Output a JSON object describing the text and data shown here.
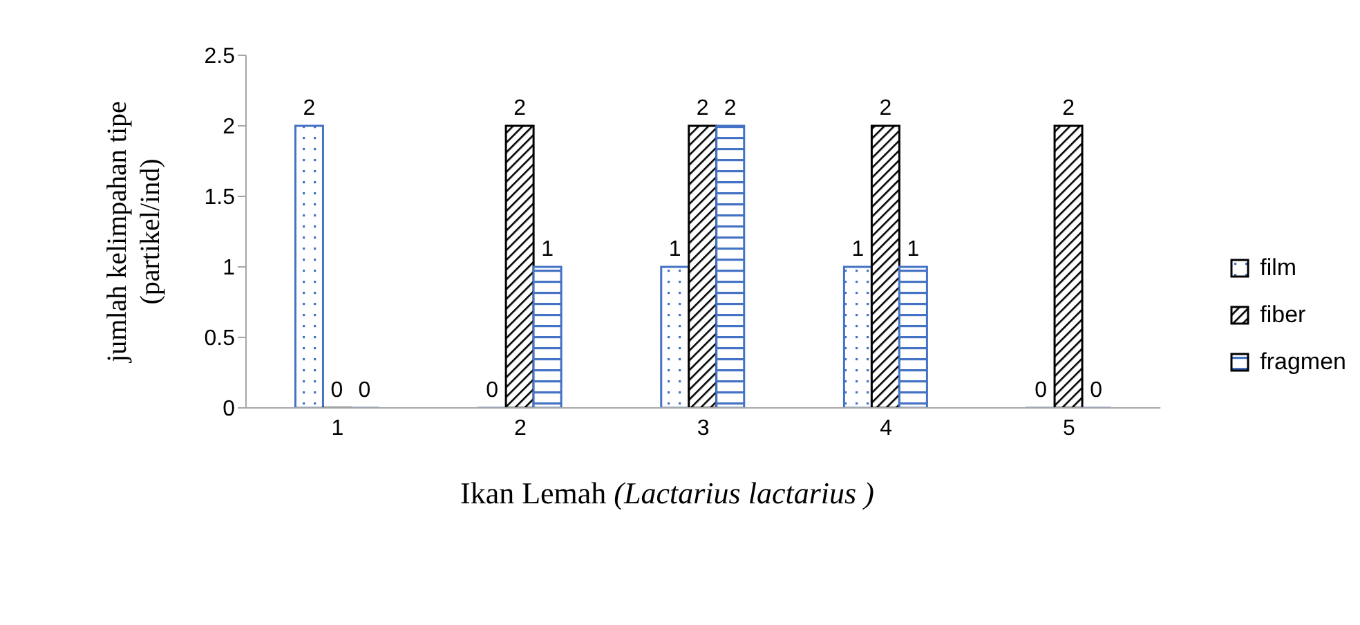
{
  "chart_data": {
    "type": "bar",
    "xlabel": "Ikan Lemah (Lactarius lactarius )",
    "ylabel": "jumlah kelimpahan tipe (partikel/ind)",
    "categories": [
      "1",
      "2",
      "3",
      "4",
      "5"
    ],
    "series": [
      {
        "name": "film",
        "color": "#4472c4",
        "values": [
          2,
          0,
          1,
          1,
          0
        ]
      },
      {
        "name": "fiber",
        "color": "#000000",
        "values": [
          0,
          2,
          2,
          2,
          2
        ]
      },
      {
        "name": "fragmen",
        "color": "#4472c4",
        "values": [
          0,
          1,
          2,
          1,
          0
        ]
      }
    ],
    "ylim": [
      0,
      2.5
    ],
    "yticks": [
      0,
      0.5,
      1,
      1.5,
      2,
      2.5
    ],
    "grid": false,
    "legend": "right",
    "data_labels": true
  }
}
